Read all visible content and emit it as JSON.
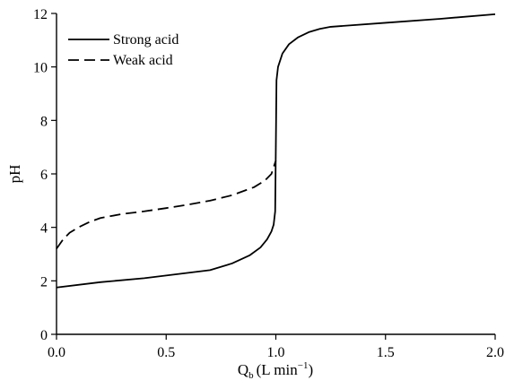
{
  "chart_data": {
    "type": "line",
    "title": "",
    "xlabel": {
      "main": "Q",
      "sub": "b",
      "units": "(L min",
      "sup": "−1",
      "close": ")"
    },
    "ylabel": "pH",
    "xlim": [
      0.0,
      2.0
    ],
    "ylim": [
      0,
      12
    ],
    "xticks": [
      "0.0",
      "0.5",
      "1.0",
      "1.5",
      "2.0"
    ],
    "yticks": [
      "0",
      "2",
      "4",
      "6",
      "8",
      "10",
      "12"
    ],
    "grid": false,
    "legend_position": "top-left",
    "series": [
      {
        "name": "Strong acid",
        "style": "solid",
        "color": "#000000",
        "points": [
          [
            0.0,
            1.75
          ],
          [
            0.2,
            1.95
          ],
          [
            0.4,
            2.1
          ],
          [
            0.6,
            2.3
          ],
          [
            0.7,
            2.4
          ],
          [
            0.8,
            2.65
          ],
          [
            0.88,
            2.95
          ],
          [
            0.93,
            3.25
          ],
          [
            0.96,
            3.55
          ],
          [
            0.98,
            3.85
          ],
          [
            0.99,
            4.1
          ],
          [
            0.997,
            4.6
          ],
          [
            1.0,
            7.0
          ],
          [
            1.003,
            9.5
          ],
          [
            1.01,
            10.0
          ],
          [
            1.03,
            10.5
          ],
          [
            1.06,
            10.85
          ],
          [
            1.1,
            11.1
          ],
          [
            1.15,
            11.3
          ],
          [
            1.2,
            11.42
          ],
          [
            1.25,
            11.5
          ],
          [
            1.5,
            11.65
          ],
          [
            1.75,
            11.8
          ],
          [
            2.0,
            11.97
          ]
        ]
      },
      {
        "name": "Weak acid",
        "style": "dashed",
        "color": "#000000",
        "points": [
          [
            0.0,
            3.2
          ],
          [
            0.03,
            3.55
          ],
          [
            0.06,
            3.8
          ],
          [
            0.1,
            4.0
          ],
          [
            0.15,
            4.2
          ],
          [
            0.2,
            4.35
          ],
          [
            0.3,
            4.5
          ],
          [
            0.4,
            4.6
          ],
          [
            0.5,
            4.72
          ],
          [
            0.6,
            4.85
          ],
          [
            0.7,
            5.0
          ],
          [
            0.8,
            5.2
          ],
          [
            0.9,
            5.5
          ],
          [
            0.95,
            5.75
          ],
          [
            0.98,
            6.0
          ],
          [
            1.0,
            6.5
          ]
        ]
      }
    ]
  }
}
